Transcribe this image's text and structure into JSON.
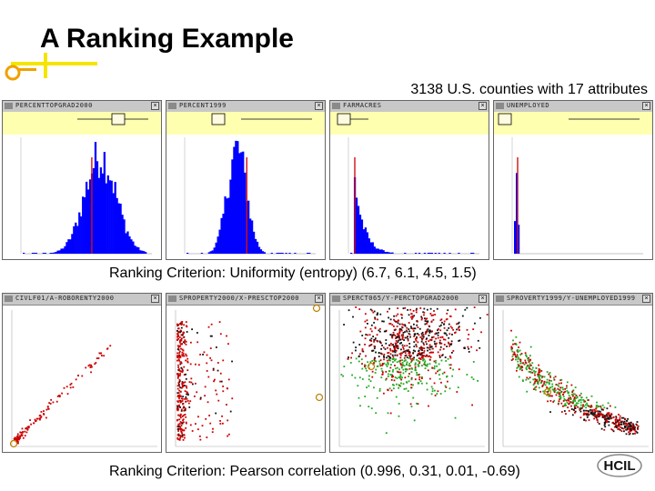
{
  "slide": {
    "title": "A Ranking Example",
    "subtitle": "3138 U.S. counties with 17 attributes",
    "criterion_uniformity": "Ranking Criterion: Uniformity (entropy) (6.7, 6.1, 4.5, 1.5)",
    "criterion_pearson": "Ranking Criterion: Pearson correlation (0.996, 0.31, 0.01, -0.69)",
    "logo_text": "HCIL"
  },
  "histograms": [
    {
      "window_title": "PERCENTTOPGRAD2000",
      "kind": "bell-wide"
    },
    {
      "window_title": "PERCENT1999",
      "kind": "bell-narrow"
    },
    {
      "window_title": "FARMACRES",
      "kind": "skew"
    },
    {
      "window_title": "UNEMPLOYED",
      "kind": "spike"
    }
  ],
  "scatters": [
    {
      "window_title": "CIVLF01/A-ROBORENTY2000",
      "kind": "linear"
    },
    {
      "window_title": "SPROPERTY2000/X-PRESCTOP2000",
      "kind": "left-cluster"
    },
    {
      "window_title": "SPERCT065/Y-PERCTOPGRAD2000",
      "kind": "blob"
    },
    {
      "window_title": "SPROVERTY1999/Y-UNEMPLOYED1999",
      "kind": "decay"
    }
  ],
  "colors": {
    "histogram_bar": "#0000ff",
    "median_line": "#d01010",
    "slider_band": "#ffffb0",
    "scatter_red": "#cc0000",
    "scatter_green": "#22aa22",
    "scatter_dark": "#111111",
    "deco_orange": "#f0a000",
    "deco_yellow": "#f5e400"
  }
}
